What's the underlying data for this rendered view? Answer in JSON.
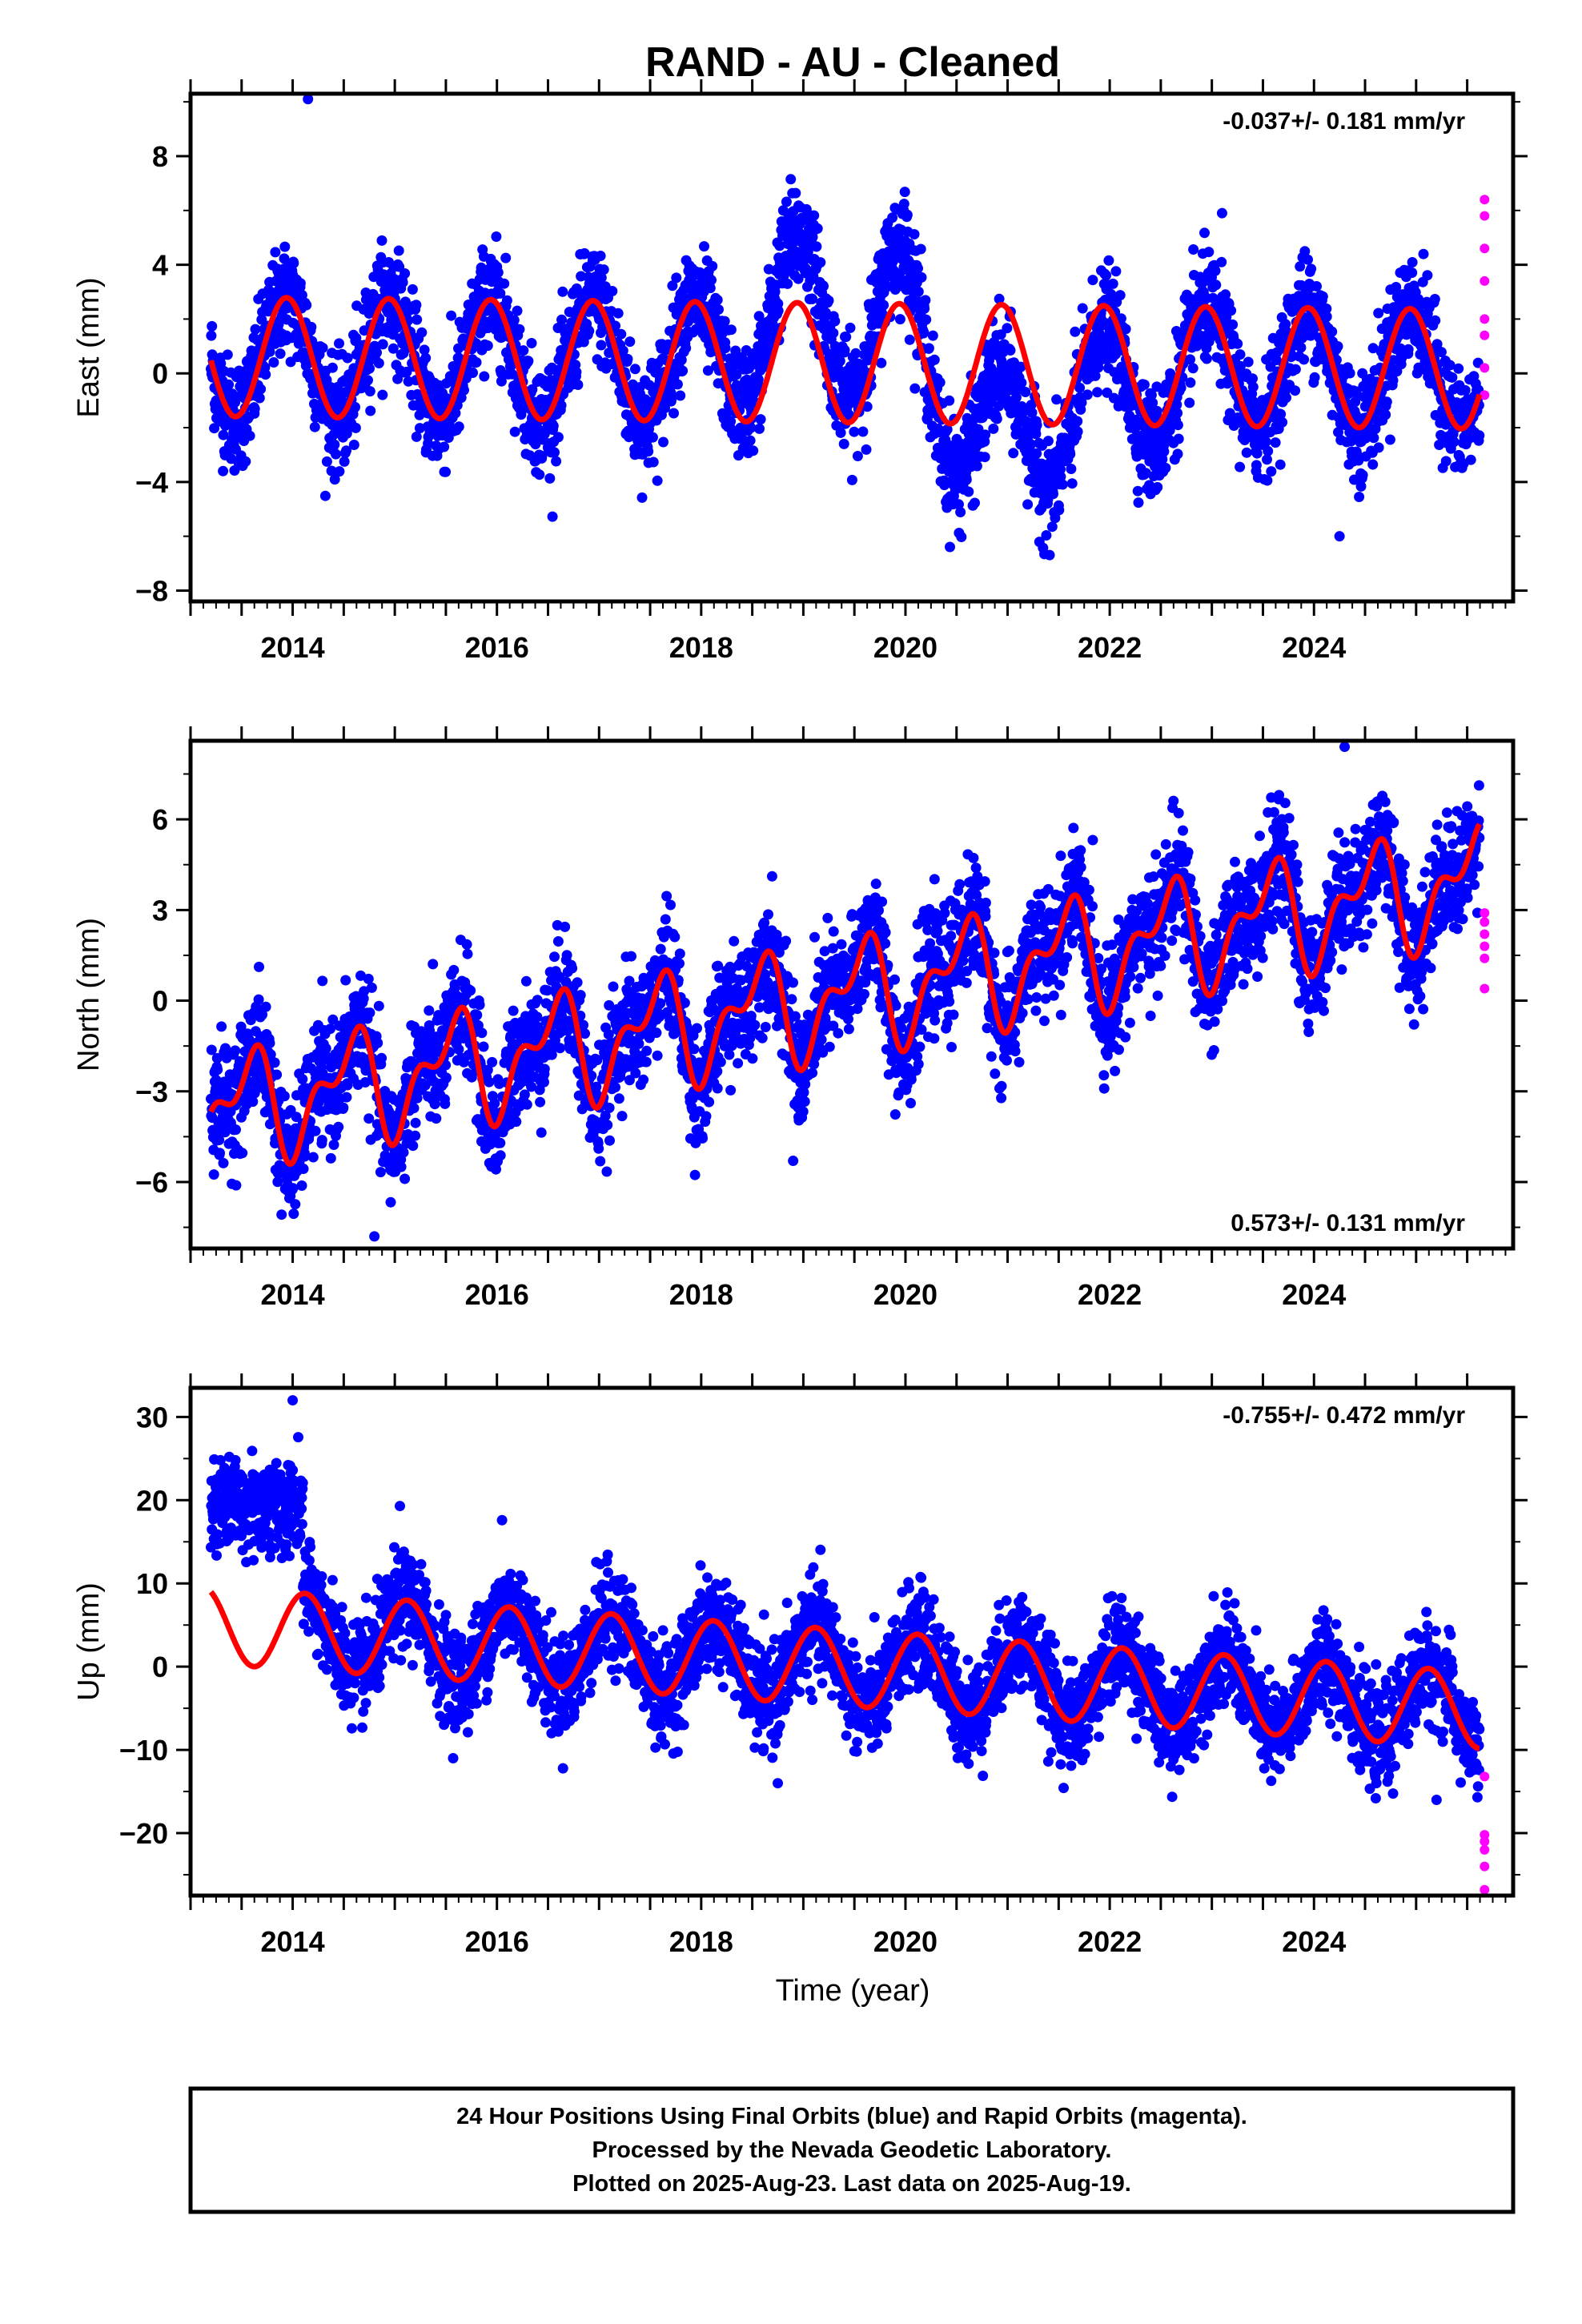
{
  "page": {
    "title": "RAND  - AU - Cleaned",
    "xlabel": "Time (year)",
    "footer": [
      "24 Hour Positions Using Final Orbits (blue) and Rapid Orbits (magenta).",
      "Processed by the Nevada Geodetic Laboratory.",
      "Plotted on 2025-Aug-23. Last data on 2025-Aug-19."
    ]
  },
  "chart_data": [
    {
      "type": "scatter",
      "ylabel": "East (mm)",
      "rate_label": "-0.037+/- 0.181 mm/yr",
      "rate_position": "top-right",
      "xlim": [
        2013.0,
        2025.95
      ],
      "ylim": [
        -8.4,
        10.3
      ],
      "yticks": [
        -8,
        -4,
        0,
        4,
        8
      ],
      "yminor": 2,
      "xticks": [
        2014,
        2016,
        2018,
        2020,
        2022,
        2024
      ],
      "xtick_labels": [
        "2014",
        "2016",
        "2018",
        "2020",
        "2022",
        "2024"
      ],
      "start": 2013.2,
      "end": 2025.62,
      "series": [
        {
          "name": "Final Orbits",
          "color": "#0000ff"
        },
        {
          "name": "Rapid Orbits",
          "color": "#ff00ff"
        },
        {
          "name": "model",
          "color": "#ff0000"
        }
      ],
      "trend": {
        "rate": -0.037,
        "offset": 0.4,
        "ref_year": 2019.0
      },
      "seasonal": {
        "amplitude": 2.2,
        "phase_year": 0.94
      },
      "anomalies": [
        {
          "center": 2018.95,
          "width": 0.45,
          "offset": 2.5
        },
        {
          "center": 2019.95,
          "width": 0.3,
          "offset": 2.3
        },
        {
          "center": 2020.6,
          "width": 0.35,
          "offset": -2.0
        },
        {
          "center": 2021.25,
          "width": 0.5,
          "offset": -2.5
        },
        {
          "center": 2022.3,
          "width": 0.4,
          "offset": -0.8
        }
      ],
      "noise": 1.0,
      "rapid": [
        6.4,
        5.8,
        4.6,
        3.4,
        2.0,
        1.4,
        0.2,
        -0.8
      ],
      "outliers": [
        [
          2014.15,
          10.1
        ],
        [
          2024.25,
          -6.0
        ],
        [
          2023.1,
          5.9
        ]
      ]
    },
    {
      "type": "scatter",
      "ylabel": "North (mm)",
      "rate_label": "0.573+/- 0.131 mm/yr",
      "rate_position": "bottom-right",
      "xlim": [
        2013.0,
        2025.95
      ],
      "ylim": [
        -8.2,
        8.6
      ],
      "yticks": [
        -6,
        -3,
        0,
        3,
        6
      ],
      "yminor": 1.5,
      "xticks": [
        2014,
        2016,
        2018,
        2020,
        2022,
        2024
      ],
      "xtick_labels": [
        "2014",
        "2016",
        "2018",
        "2020",
        "2022",
        "2024"
      ],
      "start": 2013.2,
      "end": 2025.62,
      "series": [
        {
          "name": "Final Orbits",
          "color": "#0000ff"
        },
        {
          "name": "Rapid Orbits",
          "color": "#ff00ff"
        },
        {
          "name": "model",
          "color": "#ff0000"
        }
      ],
      "trend": {
        "rate": 0.62,
        "offset": -0.1,
        "ref_year": 2019.0
      },
      "seasonal": {
        "amplitude": 1.5,
        "phase_year": 0.55
      },
      "semiannual": {
        "amplitude": 0.9,
        "phase_year": 0.2
      },
      "anomalies": [],
      "noise": 0.95,
      "rapid": [
        2.9,
        2.6,
        2.2,
        1.8,
        1.4,
        0.4
      ],
      "outliers": [
        [
          2014.8,
          -7.8
        ],
        [
          2018.9,
          -5.3
        ],
        [
          2024.3,
          8.4
        ]
      ]
    },
    {
      "type": "scatter",
      "ylabel": "Up (mm)",
      "rate_label": "-0.755+/- 0.472 mm/yr",
      "rate_position": "top-right",
      "xlim": [
        2013.0,
        2025.95
      ],
      "ylim": [
        -27.5,
        33.5
      ],
      "yticks": [
        -20,
        -10,
        0,
        10,
        20,
        30
      ],
      "yminor": 5,
      "xticks": [
        2014,
        2016,
        2018,
        2020,
        2022,
        2024
      ],
      "xtick_labels": [
        "2014",
        "2016",
        "2018",
        "2020",
        "2022",
        "2024"
      ],
      "start": 2013.2,
      "end": 2025.62,
      "series": [
        {
          "name": "Final Orbits",
          "color": "#0000ff"
        },
        {
          "name": "Rapid Orbits",
          "color": "#ff00ff"
        },
        {
          "name": "model",
          "color": "#ff0000"
        }
      ],
      "trend": {
        "rate": -0.82,
        "offset": 0.2,
        "ref_year": 2019.0
      },
      "seasonal": {
        "amplitude": 4.6,
        "phase_year": 0.12
      },
      "anomalies": [],
      "early_block": {
        "end": 2014.1,
        "level": 19.5,
        "spread": 2.8
      },
      "noise": 2.9,
      "rapid": [
        -13.2,
        -20.2,
        -21.0,
        -22.0,
        -24.0,
        -26.8
      ],
      "outliers": [
        [
          2014.0,
          32.0
        ],
        [
          2015.05,
          19.3
        ],
        [
          2016.05,
          17.6
        ],
        [
          2018.75,
          -14.0
        ],
        [
          2025.2,
          -16.0
        ]
      ]
    }
  ]
}
